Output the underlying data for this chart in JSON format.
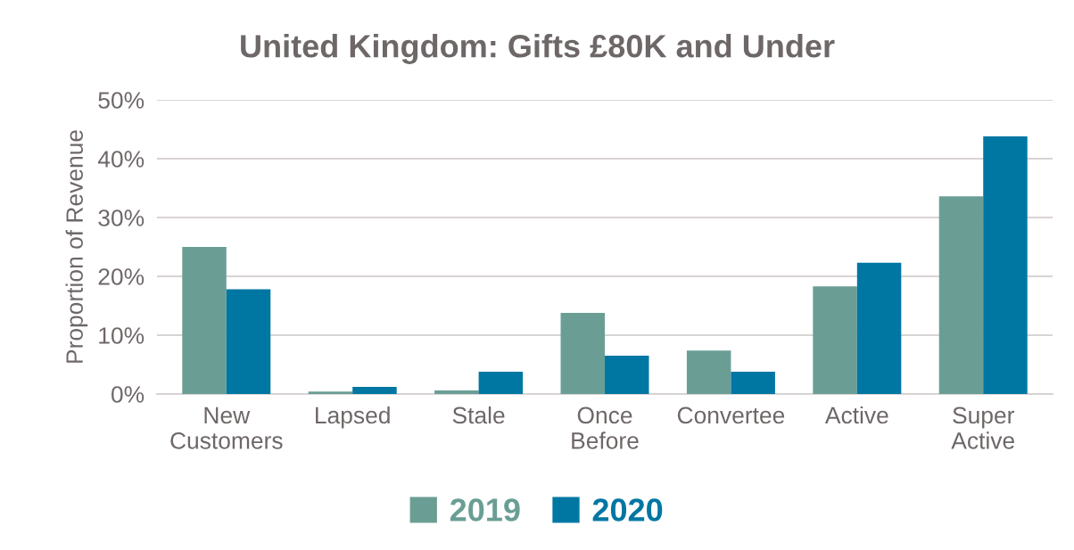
{
  "chart_data": {
    "type": "bar",
    "title": "United Kingdom: Gifts £80K and Under",
    "ylabel": "Proportion of Revenue",
    "categories": [
      "New\nCustomers",
      "Lapsed",
      "Stale",
      "Once\nBefore",
      "Convertee",
      "Active",
      "Super\nActive"
    ],
    "series": [
      {
        "name": "2019",
        "color": "#6a9e94",
        "values": [
          25.0,
          0.4,
          0.6,
          13.8,
          7.4,
          18.3,
          33.6
        ]
      },
      {
        "name": "2020",
        "color": "#0077a3",
        "values": [
          17.8,
          1.2,
          3.8,
          6.5,
          3.8,
          22.3,
          43.8
        ]
      }
    ],
    "ylim": [
      0,
      50
    ],
    "yticks": [
      {
        "value": 0,
        "label": "0%"
      },
      {
        "value": 10,
        "label": "10%"
      },
      {
        "value": 20,
        "label": "20%"
      },
      {
        "value": 30,
        "label": "30%"
      },
      {
        "value": 40,
        "label": "40%"
      },
      {
        "value": 50,
        "label": "50%"
      }
    ],
    "grid": "y",
    "legend": "bottom"
  }
}
